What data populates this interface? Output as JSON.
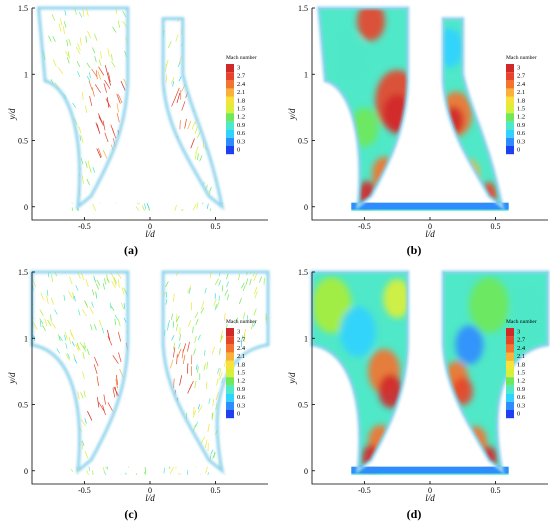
{
  "colors": {
    "background": "#ffffff",
    "wall": "#8fd3ec",
    "colormap": [
      "#1f40f0",
      "#2f8cff",
      "#2fd3ff",
      "#4fe8c8",
      "#6fe85a",
      "#a8ee3a",
      "#d9f03a",
      "#f7e23a",
      "#f8b23a",
      "#f2742f",
      "#e6452c",
      "#d1282a"
    ]
  },
  "chart_data": [
    {
      "panel_label": "(a)",
      "type": "vector",
      "xlabel": "l/d",
      "ylabel": "y/d",
      "xticks": [
        "-0.5",
        "0",
        "0.5"
      ],
      "yticks": [
        "0",
        "0.5",
        "1",
        "1.5"
      ],
      "xlim": [
        -0.9,
        0.9
      ],
      "ylim": [
        -0.1,
        1.5
      ],
      "legend": {
        "title": "Mach number",
        "levels": [
          "3",
          "2.7",
          "2.4",
          "2.1",
          "1.8",
          "1.5",
          "1.2",
          "0.9",
          "0.6",
          "0.3",
          "0"
        ]
      }
    },
    {
      "panel_label": "(b)",
      "type": "heatmap",
      "xlabel": "l/d",
      "ylabel": "y/d",
      "xticks": [
        "-0.5",
        "0",
        "0.5"
      ],
      "yticks": [
        "0",
        "0.5",
        "1",
        "1.5"
      ],
      "xlim": [
        -0.9,
        0.9
      ],
      "ylim": [
        -0.1,
        1.5
      ],
      "legend": {
        "title": "Mach number",
        "levels": [
          "3",
          "2.7",
          "2.4",
          "2.1",
          "1.8",
          "1.5",
          "1.2",
          "0.9",
          "0.6",
          "0.3",
          "0"
        ]
      }
    },
    {
      "panel_label": "(c)",
      "type": "vector",
      "xlabel": "l/d",
      "ylabel": "y/d",
      "xticks": [
        "-0.5",
        "0",
        "0.5"
      ],
      "yticks": [
        "0",
        "0.5",
        "1",
        "1.5"
      ],
      "xlim": [
        -0.9,
        0.9
      ],
      "ylim": [
        -0.1,
        1.5
      ],
      "legend": {
        "title": "Mach number",
        "levels": [
          "3",
          "2.7",
          "2.4",
          "2.1",
          "1.8",
          "1.5",
          "1.2",
          "0.9",
          "0.6",
          "0.3",
          "0"
        ]
      }
    },
    {
      "panel_label": "(d)",
      "type": "heatmap",
      "xlabel": "l/d",
      "ylabel": "y/d",
      "xticks": [
        "-0.5",
        "0",
        "0.5"
      ],
      "yticks": [
        "0",
        "0.5",
        "1",
        "1.5"
      ],
      "xlim": [
        -0.9,
        0.9
      ],
      "ylim": [
        -0.1,
        1.5
      ],
      "legend": {
        "title": "Mach number",
        "levels": [
          "3",
          "2.7",
          "2.4",
          "2.1",
          "1.8",
          "1.5",
          "1.2",
          "0.9",
          "0.6",
          "0.3",
          "0"
        ]
      }
    }
  ]
}
